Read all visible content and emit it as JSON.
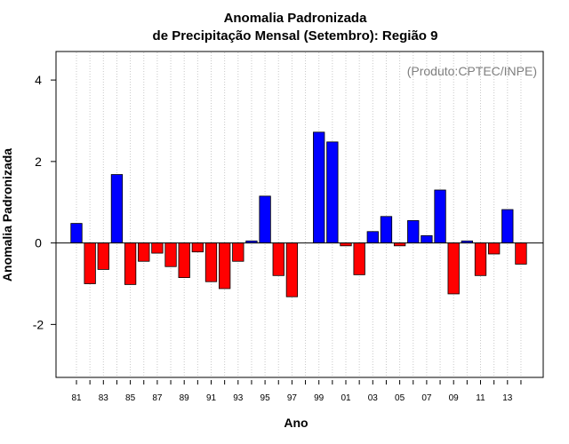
{
  "chart_data": {
    "type": "bar",
    "title": "Anomalia Padronizada",
    "subtitle": "de Precipitação Mensal (Setembro): Região 9",
    "credit": "(Produto:CPTEC/INPE)",
    "xlabel": "Ano",
    "ylabel": "Anomalia Padronizada",
    "ylim": [
      -3.3,
      4.7
    ],
    "yticks": [
      -2,
      0,
      2,
      4
    ],
    "xtick_labels": [
      "81",
      "83",
      "85",
      "87",
      "89",
      "91",
      "93",
      "95",
      "97",
      "99",
      "01",
      "03",
      "05",
      "07",
      "09",
      "11",
      "13"
    ],
    "categories": [
      "81",
      "82",
      "83",
      "84",
      "85",
      "86",
      "87",
      "88",
      "89",
      "90",
      "91",
      "92",
      "93",
      "94",
      "95",
      "96",
      "97",
      "98",
      "99",
      "00",
      "01",
      "02",
      "03",
      "04",
      "05",
      "06",
      "07",
      "08",
      "09",
      "10",
      "11",
      "12",
      "13",
      "14"
    ],
    "values": [
      0.48,
      -1.0,
      -0.65,
      1.68,
      -1.02,
      -0.45,
      -0.25,
      -0.58,
      -0.85,
      -0.22,
      -0.95,
      -1.12,
      -0.45,
      0.05,
      1.15,
      -0.8,
      -1.32,
      0.0,
      2.72,
      2.48,
      -0.07,
      -0.78,
      0.28,
      0.65,
      -0.07,
      0.55,
      0.18,
      1.3,
      -1.25,
      0.05,
      -0.8,
      -0.27,
      0.82,
      -0.52
    ],
    "positive_color": "#0000ff",
    "negative_color": "#ff0000",
    "grid": "vertical dotted"
  }
}
